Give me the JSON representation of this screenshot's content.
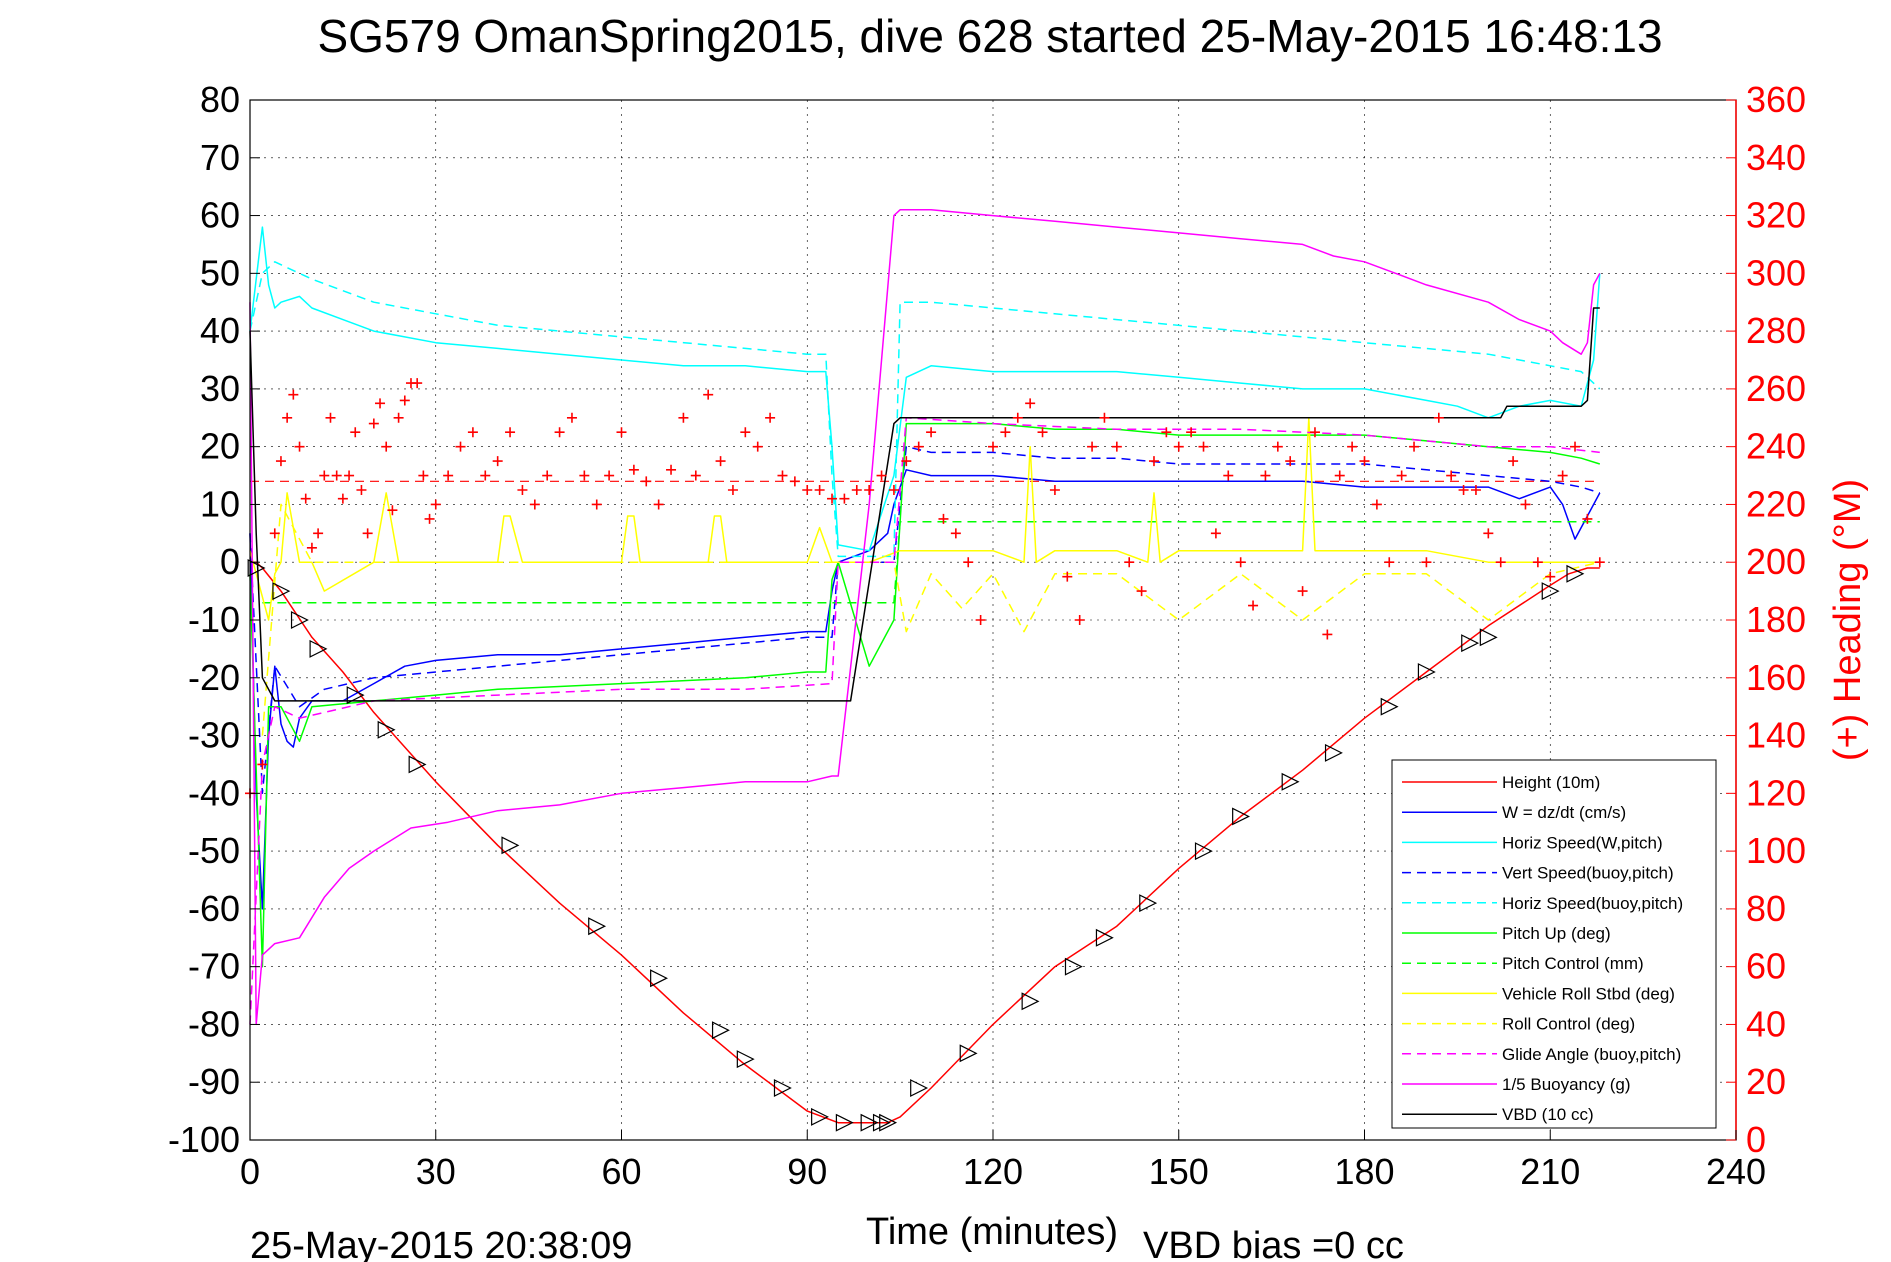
{
  "title": "SG579 OmanSpring2015, dive 628 started 25-May-2015 16:48:13",
  "footer": {
    "timestamp": "25-May-2015 20:38:09",
    "vbd_bias": "VBD bias =0 cc"
  },
  "chart_data": {
    "type": "line",
    "xlabel": "Time (minutes)",
    "ylabel": "",
    "y2label": "(+) Heading (°M)",
    "xlim": [
      0,
      240
    ],
    "ylim": [
      -100,
      80
    ],
    "y2lim": [
      0,
      360
    ],
    "xticks": [
      0,
      30,
      60,
      90,
      120,
      150,
      180,
      210,
      240
    ],
    "yticks": [
      80,
      70,
      60,
      50,
      40,
      30,
      20,
      10,
      0,
      -10,
      -20,
      -30,
      -40,
      -50,
      -60,
      -70,
      -80,
      -90,
      -100
    ],
    "y2ticks": [
      360,
      340,
      320,
      300,
      280,
      260,
      240,
      220,
      200,
      180,
      160,
      140,
      120,
      100,
      80,
      60,
      40,
      20,
      0
    ],
    "grid": true,
    "legend_position": "bottom-right",
    "colors": {
      "height": "#ff0000",
      "w": "#0000ff",
      "horiz_w": "#00ffff",
      "vert_buoy": "#0000ff",
      "horiz_buoy": "#00ffff",
      "pitch": "#00ff00",
      "pitch_ctrl": "#00ff00",
      "roll": "#ffff00",
      "roll_ctrl": "#ffff00",
      "glide": "#ff00ff",
      "buoyancy": "#ff00ff",
      "vbd": "#000000",
      "heading": "#ff0000",
      "right_axis": "#ff0000"
    },
    "series": [
      {
        "key": "height",
        "name": "Height (10m)",
        "style": "solid",
        "x": [
          0,
          1,
          2,
          5,
          10,
          15,
          20,
          25,
          30,
          40,
          50,
          60,
          70,
          80,
          90,
          95,
          98,
          100,
          103,
          105,
          110,
          120,
          130,
          140,
          150,
          160,
          170,
          180,
          190,
          200,
          210,
          213,
          216,
          218
        ],
        "y": [
          0,
          0,
          -1,
          -5,
          -13,
          -19,
          -26,
          -32,
          -38,
          -49,
          -59,
          -68,
          -78,
          -87,
          -95,
          -97,
          -97,
          -97,
          -97,
          -96,
          -91,
          -80,
          -70,
          -63,
          -53,
          -44,
          -36,
          -27,
          -19,
          -11,
          -4,
          -2,
          -1,
          -1
        ]
      },
      {
        "key": "w",
        "name": "W = dz/dt (cm/s)",
        "style": "solid",
        "x": [
          0,
          1,
          2,
          3,
          4,
          5,
          6,
          7,
          8,
          10,
          15,
          20,
          25,
          30,
          40,
          50,
          60,
          70,
          80,
          90,
          93,
          94,
          95,
          100,
          103,
          104,
          106,
          110,
          120,
          130,
          140,
          150,
          160,
          170,
          180,
          190,
          200,
          205,
          210,
          212,
          214,
          216,
          218
        ],
        "y": [
          5,
          -40,
          -60,
          -30,
          -18,
          -28,
          -31,
          -32,
          -27,
          -24,
          -24,
          -21,
          -18,
          -17,
          -16,
          -16,
          -15,
          -14,
          -13,
          -12,
          -12,
          -5,
          0,
          2,
          5,
          10,
          16,
          15,
          15,
          14,
          14,
          14,
          14,
          14,
          13,
          13,
          13,
          11,
          13,
          10,
          4,
          8,
          12
        ]
      },
      {
        "key": "horiz_w",
        "name": "Horiz Speed(W,pitch)",
        "style": "solid",
        "x": [
          0,
          2,
          3,
          4,
          5,
          8,
          10,
          15,
          20,
          30,
          40,
          50,
          60,
          70,
          80,
          90,
          93,
          94,
          95,
          100,
          104,
          106,
          110,
          120,
          130,
          140,
          150,
          160,
          170,
          180,
          190,
          195,
          200,
          205,
          210,
          215,
          217,
          218
        ],
        "y": [
          40,
          58,
          48,
          44,
          45,
          46,
          44,
          42,
          40,
          38,
          37,
          36,
          35,
          34,
          34,
          33,
          33,
          20,
          3,
          2,
          15,
          32,
          34,
          33,
          33,
          33,
          32,
          31,
          30,
          30,
          28,
          27,
          25,
          27,
          28,
          27,
          35,
          50
        ]
      },
      {
        "key": "vert_buoy",
        "name": "Vert Speed(buoy,pitch)",
        "style": "dashed",
        "x": [
          0,
          2,
          4,
          8,
          12,
          20,
          30,
          40,
          50,
          60,
          70,
          80,
          90,
          94,
          95,
          100,
          104,
          106,
          110,
          120,
          130,
          140,
          150,
          160,
          170,
          180,
          190,
          200,
          210,
          215,
          218
        ],
        "y": [
          5,
          -40,
          -18,
          -25,
          -22,
          -20,
          -19,
          -18,
          -17,
          -16,
          -15,
          -14,
          -13,
          -13,
          0,
          0,
          0,
          20,
          19,
          19,
          18,
          18,
          17,
          17,
          17,
          17,
          16,
          15,
          14,
          13,
          12
        ]
      },
      {
        "key": "horiz_buoy",
        "name": "Horiz Speed(buoy,pitch)",
        "style": "dashed",
        "x": [
          0,
          2,
          4,
          6,
          10,
          20,
          30,
          40,
          60,
          80,
          90,
          93,
          94,
          95,
          104,
          105,
          110,
          120,
          140,
          160,
          180,
          200,
          210,
          215,
          218
        ],
        "y": [
          40,
          50,
          52,
          51,
          49,
          45,
          43,
          41,
          39,
          37,
          36,
          36,
          15,
          1,
          1,
          45,
          45,
          44,
          42,
          40,
          38,
          36,
          34,
          33,
          30
        ]
      },
      {
        "key": "pitch",
        "name": "Pitch Up (deg)",
        "style": "solid",
        "x": [
          0,
          2,
          3,
          5,
          8,
          10,
          20,
          30,
          40,
          60,
          80,
          90,
          93,
          94,
          95,
          100,
          104,
          106,
          110,
          120,
          130,
          140,
          150,
          160,
          170,
          180,
          190,
          200,
          210,
          215,
          218
        ],
        "y": [
          -2,
          -70,
          -25,
          -25,
          -31,
          -25,
          -24,
          -23,
          -22,
          -21,
          -20,
          -19,
          -19,
          -3,
          0,
          -18,
          -10,
          24,
          24,
          24,
          23,
          23,
          22,
          22,
          22,
          22,
          21,
          20,
          19,
          18,
          17
        ]
      },
      {
        "key": "pitch_ctrl",
        "name": "Pitch Control (mm)",
        "style": "dashed",
        "x": [
          2,
          5,
          104,
          105,
          218
        ],
        "y": [
          -7,
          -7,
          -7,
          7,
          7
        ]
      },
      {
        "key": "roll",
        "name": "Vehicle Roll Stbd (deg)",
        "style": "solid",
        "x": [
          0,
          3,
          4,
          5,
          6,
          8,
          10,
          12,
          20,
          22,
          24,
          26,
          30,
          40,
          41,
          42,
          44,
          50,
          60,
          61,
          62,
          63,
          70,
          74,
          75,
          76,
          77,
          80,
          90,
          92,
          94,
          100,
          105,
          110,
          120,
          125,
          126,
          127,
          130,
          140,
          145,
          146,
          147,
          150,
          160,
          170,
          171,
          172,
          173,
          180,
          190,
          200,
          210,
          218
        ],
        "y": [
          2,
          -10,
          -2,
          0,
          12,
          0,
          0,
          -5,
          0,
          12,
          0,
          0,
          0,
          0,
          8,
          8,
          0,
          0,
          0,
          8,
          8,
          0,
          0,
          0,
          8,
          8,
          0,
          0,
          0,
          6,
          0,
          0,
          2,
          2,
          2,
          0,
          20,
          0,
          2,
          2,
          0,
          12,
          0,
          2,
          2,
          2,
          25,
          2,
          2,
          2,
          2,
          0,
          0,
          0
        ]
      },
      {
        "key": "roll_ctrl",
        "name": "Roll Control (deg)",
        "style": "dashed",
        "x": [
          2,
          5,
          10,
          20,
          40,
          60,
          80,
          104,
          106,
          110,
          115,
          120,
          125,
          130,
          140,
          150,
          160,
          170,
          180,
          190,
          200,
          210,
          218
        ],
        "y": [
          -30,
          10,
          0,
          0,
          0,
          0,
          0,
          0,
          -12,
          -2,
          -8,
          -2,
          -12,
          -2,
          -2,
          -10,
          -2,
          -10,
          -2,
          -2,
          -10,
          -2,
          0
        ]
      },
      {
        "key": "glide",
        "name": "Glide Angle (buoy,pitch)",
        "style": "dashed",
        "x": [
          0,
          2,
          4,
          8,
          20,
          40,
          60,
          80,
          94,
          95,
          104,
          106,
          120,
          140,
          160,
          180,
          200,
          210,
          218
        ],
        "y": [
          -80,
          -35,
          -25,
          -27,
          -24,
          -23,
          -22,
          -22,
          -21,
          0,
          0,
          25,
          24,
          23,
          23,
          22,
          20,
          20,
          19
        ]
      },
      {
        "key": "buoyancy",
        "name": "1/5 Buoyancy (g)",
        "style": "solid",
        "x": [
          0,
          1,
          2,
          4,
          8,
          12,
          16,
          20,
          26,
          32,
          40,
          50,
          60,
          70,
          80,
          90,
          94,
          95,
          100,
          104,
          105,
          110,
          120,
          130,
          140,
          150,
          160,
          170,
          175,
          180,
          185,
          190,
          200,
          205,
          210,
          212,
          215,
          216,
          217,
          218
        ],
        "y": [
          45,
          -80,
          -68,
          -66,
          -65,
          -58,
          -53,
          -50,
          -46,
          -45,
          -43,
          -42,
          -40,
          -39,
          -38,
          -38,
          -37,
          -37,
          10,
          60,
          61,
          61,
          60,
          59,
          58,
          57,
          56,
          55,
          53,
          52,
          50,
          48,
          45,
          42,
          40,
          38,
          36,
          38,
          48,
          50
        ]
      },
      {
        "key": "vbd",
        "name": "VBD (10 cc)",
        "style": "solid",
        "x": [
          0,
          1,
          2,
          4,
          6,
          96,
          97,
          104,
          105,
          110,
          150,
          200,
          202,
          203,
          215,
          216,
          217,
          218
        ],
        "y": [
          40,
          5,
          -20,
          -24,
          -24,
          -24,
          -24,
          24,
          25,
          25,
          25,
          25,
          25,
          27,
          27,
          28,
          44,
          44
        ]
      }
    ],
    "heading": {
      "name": "(+) Heading (°M)",
      "marker": "+",
      "mean_x": [
        0,
        218
      ],
      "mean_y": [
        228,
        228
      ],
      "x": [
        0,
        2,
        4,
        5,
        6,
        7,
        8,
        9,
        10,
        11,
        12,
        13,
        14,
        15,
        16,
        17,
        18,
        19,
        20,
        21,
        22,
        23,
        24,
        25,
        26,
        27,
        28,
        29,
        30,
        32,
        34,
        36,
        38,
        40,
        42,
        44,
        46,
        48,
        50,
        52,
        54,
        56,
        58,
        60,
        62,
        64,
        66,
        68,
        70,
        72,
        74,
        76,
        78,
        80,
        82,
        84,
        86,
        88,
        90,
        92,
        94,
        96,
        98,
        100,
        102,
        104,
        106,
        108,
        110,
        112,
        114,
        116,
        118,
        120,
        122,
        124,
        126,
        128,
        130,
        132,
        134,
        136,
        138,
        140,
        142,
        144,
        146,
        148,
        150,
        152,
        154,
        156,
        158,
        160,
        162,
        164,
        166,
        168,
        170,
        172,
        174,
        176,
        178,
        180,
        182,
        184,
        186,
        188,
        190,
        192,
        194,
        196,
        198,
        200,
        202,
        204,
        206,
        208,
        210,
        212,
        214,
        216,
        218
      ],
      "y": [
        120,
        130,
        210,
        235,
        250,
        258,
        240,
        222,
        205,
        210,
        230,
        250,
        230,
        222,
        230,
        245,
        225,
        210,
        248,
        255,
        240,
        218,
        250,
        256,
        262,
        262,
        230,
        215,
        220,
        230,
        240,
        245,
        230,
        235,
        245,
        225,
        220,
        230,
        245,
        250,
        230,
        220,
        230,
        245,
        232,
        228,
        220,
        232,
        250,
        230,
        258,
        235,
        225,
        245,
        240,
        250,
        230,
        228,
        225,
        225,
        222,
        222,
        225,
        225,
        230,
        225,
        235,
        240,
        245,
        215,
        210,
        200,
        180,
        240,
        245,
        250,
        255,
        245,
        225,
        195,
        180,
        240,
        250,
        240,
        200,
        190,
        235,
        245,
        240,
        245,
        240,
        210,
        230,
        200,
        185,
        230,
        240,
        235,
        190,
        245,
        175,
        230,
        240,
        235,
        220,
        200,
        230,
        240,
        200,
        250,
        230,
        225,
        225,
        210,
        200,
        235,
        220,
        200,
        195,
        230,
        240,
        215,
        200
      ]
    },
    "glider_markers": {
      "marker": "triangle",
      "x": [
        1,
        5,
        8,
        11,
        17,
        22,
        27,
        42,
        56,
        66,
        76,
        80,
        86,
        92,
        96,
        100,
        102,
        103,
        108,
        116,
        126,
        133,
        138,
        145,
        154,
        160,
        168,
        175,
        184,
        190,
        197,
        200,
        210,
        214
      ],
      "y": [
        -1,
        -5,
        -10,
        -15,
        -23,
        -29,
        -35,
        -49,
        -63,
        -72,
        -81,
        -86,
        -91,
        -96,
        -97,
        -97,
        -97,
        -97,
        -91,
        -85,
        -76,
        -70,
        -65,
        -59,
        -50,
        -44,
        -38,
        -33,
        -25,
        -19,
        -14,
        -13,
        -5,
        -2
      ]
    }
  }
}
